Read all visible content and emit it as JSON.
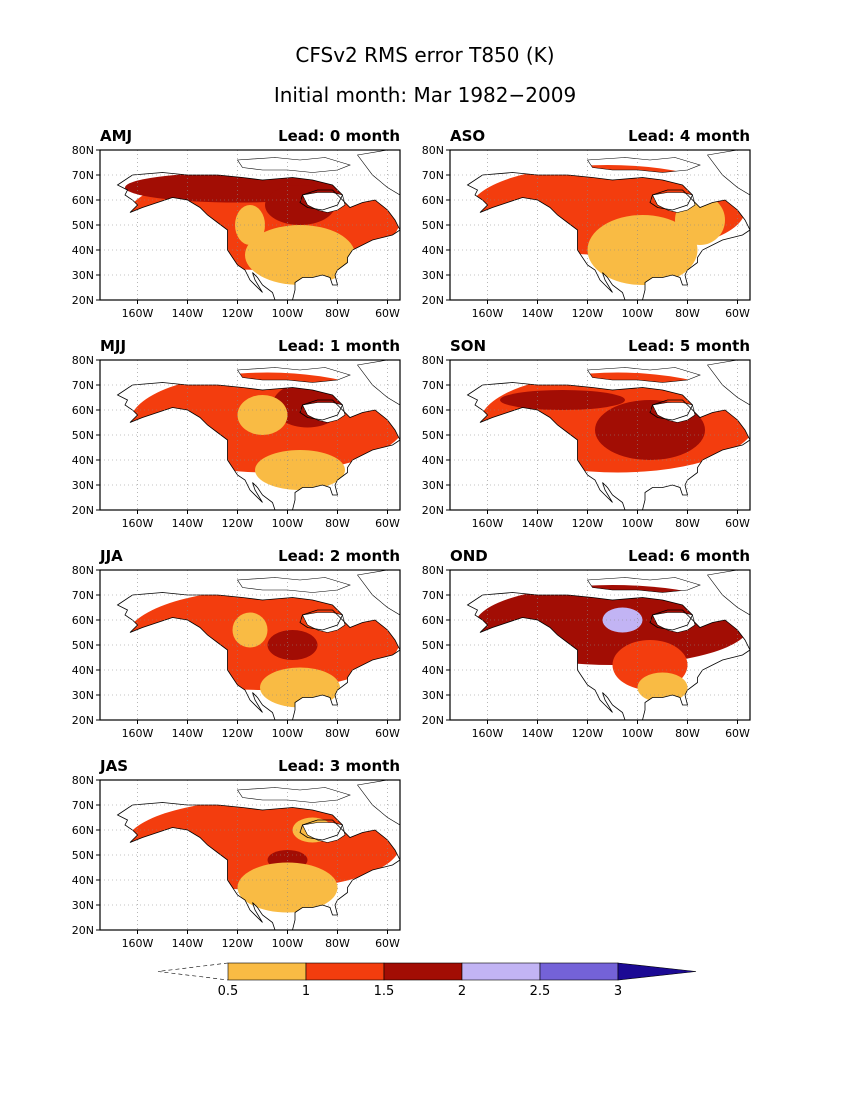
{
  "title": "CFSv2 RMS error T850 (K)",
  "subtitle": "Initial month: Mar 1982−2009",
  "colors": {
    "ocean": "#ffffff",
    "land_no_shade": "#ffffff",
    "c_0_5_1": "#f9bb44",
    "c_1_1_5": "#f33d0e",
    "c_1_5_2": "#a20d04",
    "c_2_2_5": "#c2b4f4",
    "c_2_5_3": "#7462d8",
    "c_3_plus": "#1c0a94"
  },
  "chart_data": {
    "type": "heatmap",
    "variable": "RMS error T850 (K)",
    "x_ticks": [
      "160W",
      "140W",
      "120W",
      "100W",
      "80W",
      "60W"
    ],
    "y_ticks": [
      "20N",
      "30N",
      "40N",
      "50N",
      "60N",
      "70N",
      "80N"
    ],
    "xlim": [
      -175,
      -55
    ],
    "ylim": [
      20,
      80
    ],
    "grid": true,
    "colorbar": {
      "levels": [
        "0.5",
        "1",
        "1.5",
        "2",
        "2.5",
        "3"
      ],
      "orientation": "horizontal",
      "placement": "bottom"
    },
    "panels": [
      {
        "season": "AMJ",
        "lead_label": "Lead: 0 month",
        "lead": 0
      },
      {
        "season": "ASO",
        "lead_label": "Lead: 4 month",
        "lead": 4
      },
      {
        "season": "MJJ",
        "lead_label": "Lead: 1 month",
        "lead": 1
      },
      {
        "season": "SON",
        "lead_label": "Lead: 5 month",
        "lead": 5
      },
      {
        "season": "JJA",
        "lead_label": "Lead: 2 month",
        "lead": 2
      },
      {
        "season": "OND",
        "lead_label": "Lead: 6 month",
        "lead": 6
      },
      {
        "season": "JAS",
        "lead_label": "Lead: 3 month",
        "lead": 3
      }
    ]
  }
}
